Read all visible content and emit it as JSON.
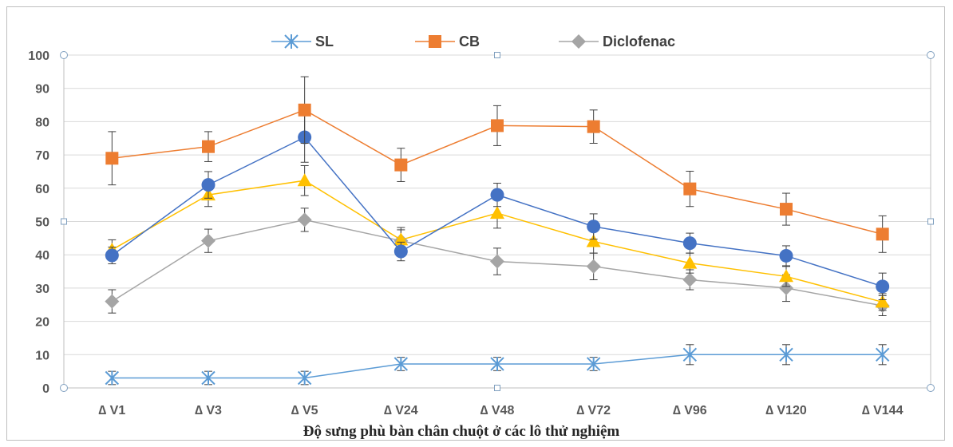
{
  "chart_data": {
    "type": "line",
    "title": "",
    "xlabel": "Độ sưng phù bàn chân chuột ở các lô thử nghiệm",
    "ylabel": "",
    "ylim": [
      0,
      100
    ],
    "yticks": [
      "0",
      "10",
      "20",
      "30",
      "40",
      "50",
      "60",
      "70",
      "80",
      "90",
      "100"
    ],
    "categories": [
      "∆ V1",
      "∆ V3",
      "∆ V5",
      "∆ V24",
      "∆ V48",
      "∆ V72",
      "∆ V96",
      "∆ V120",
      "∆ V144"
    ],
    "grid": true,
    "legend_position": "top-center",
    "series": [
      {
        "name": "SL",
        "color": "#5b9bd5",
        "marker": "asterisk",
        "values": [
          3,
          3,
          3,
          7.2,
          7.2,
          7.2,
          10,
          10,
          10
        ],
        "errors": [
          2,
          2,
          2,
          2,
          2,
          2,
          3,
          3,
          3
        ],
        "in_legend": true
      },
      {
        "name": "CB",
        "color": "#ed7d31",
        "marker": "square",
        "values": [
          69,
          72.5,
          83.5,
          67,
          78.8,
          78.5,
          59.8,
          53.7,
          46.2
        ],
        "errors": [
          8,
          4.5,
          10,
          5,
          6,
          5,
          5.3,
          4.8,
          5.5
        ],
        "in_legend": true
      },
      {
        "name": "Diclofenac",
        "color": "#a5a5a5",
        "marker": "diamond",
        "values": [
          26,
          44.2,
          50.5,
          44.2,
          38,
          36.5,
          32.5,
          30,
          24.7
        ],
        "errors": [
          3.5,
          3.5,
          3.5,
          4,
          4,
          4,
          3,
          4,
          3
        ],
        "in_legend": true
      },
      {
        "name": "",
        "color": "#4472c4",
        "marker": "circle",
        "values": [
          39.8,
          61,
          75.3,
          41,
          58,
          48.5,
          43.5,
          39.7,
          30.5
        ],
        "errors": [
          2.5,
          4,
          7.5,
          2.8,
          3.5,
          3.8,
          3,
          3,
          4
        ],
        "in_legend": false
      },
      {
        "name": "",
        "color": "#ffc000",
        "marker": "triangle",
        "values": [
          41.5,
          58,
          62.3,
          44.5,
          52.5,
          44,
          37.5,
          33.5,
          25.8
        ],
        "errors": [
          3,
          3.5,
          4.5,
          3,
          4.5,
          3.5,
          3,
          3,
          2.5
        ],
        "in_legend": false
      }
    ]
  }
}
